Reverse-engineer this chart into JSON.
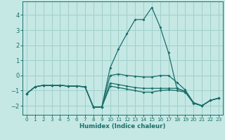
{
  "xlabel": "Humidex (Indice chaleur)",
  "bg_color": "#c5e8e4",
  "grid_color": "#9ecfcc",
  "line_color": "#1a6e6a",
  "xlim": [
    -0.5,
    23.5
  ],
  "ylim": [
    -2.6,
    4.9
  ],
  "yticks": [
    -2,
    -1,
    0,
    1,
    2,
    3,
    4
  ],
  "xticks": [
    0,
    1,
    2,
    3,
    4,
    5,
    6,
    7,
    8,
    9,
    10,
    11,
    12,
    13,
    14,
    15,
    16,
    17,
    18,
    19,
    20,
    21,
    22,
    23
  ],
  "lines": [
    {
      "x": [
        0,
        1,
        2,
        3,
        4,
        5,
        6,
        7,
        8,
        9,
        10,
        11,
        12,
        13,
        14,
        15,
        16,
        17,
        18,
        19,
        20,
        21,
        22,
        23
      ],
      "y": [
        -1.2,
        -0.75,
        -0.65,
        -0.65,
        -0.65,
        -0.7,
        -0.7,
        -0.75,
        -2.1,
        -2.1,
        0.5,
        1.75,
        2.75,
        3.7,
        3.7,
        4.5,
        3.2,
        1.5,
        -0.85,
        -1.05,
        -1.8,
        -2.0,
        -1.65,
        -1.5
      ]
    },
    {
      "x": [
        0,
        1,
        2,
        3,
        4,
        5,
        6,
        7,
        8,
        9,
        10,
        11,
        12,
        13,
        14,
        15,
        16,
        17,
        18,
        19,
        20,
        21,
        22,
        23
      ],
      "y": [
        -1.2,
        -0.75,
        -0.65,
        -0.65,
        -0.65,
        -0.7,
        -0.7,
        -0.75,
        -2.1,
        -2.1,
        0.0,
        0.1,
        0.0,
        -0.05,
        -0.1,
        -0.1,
        -0.0,
        0.0,
        -0.45,
        -0.95,
        -1.8,
        -2.0,
        -1.65,
        -1.5
      ]
    },
    {
      "x": [
        0,
        1,
        2,
        3,
        4,
        5,
        6,
        7,
        8,
        9,
        10,
        11,
        12,
        13,
        14,
        15,
        16,
        17,
        18,
        19,
        20,
        21,
        22,
        23
      ],
      "y": [
        -1.2,
        -0.75,
        -0.65,
        -0.65,
        -0.65,
        -0.7,
        -0.7,
        -0.75,
        -2.1,
        -2.1,
        -0.5,
        -0.6,
        -0.7,
        -0.8,
        -0.85,
        -0.85,
        -0.85,
        -0.85,
        -0.85,
        -1.05,
        -1.8,
        -2.0,
        -1.65,
        -1.5
      ]
    },
    {
      "x": [
        0,
        1,
        2,
        3,
        4,
        5,
        6,
        7,
        8,
        9,
        10,
        11,
        12,
        13,
        14,
        15,
        16,
        17,
        18,
        19,
        20,
        21,
        22,
        23
      ],
      "y": [
        -1.2,
        -0.75,
        -0.65,
        -0.65,
        -0.65,
        -0.7,
        -0.7,
        -0.75,
        -2.1,
        -2.1,
        -0.7,
        -0.8,
        -0.9,
        -1.0,
        -1.1,
        -1.1,
        -1.0,
        -0.95,
        -1.0,
        -1.1,
        -1.85,
        -2.0,
        -1.65,
        -1.5
      ]
    }
  ]
}
